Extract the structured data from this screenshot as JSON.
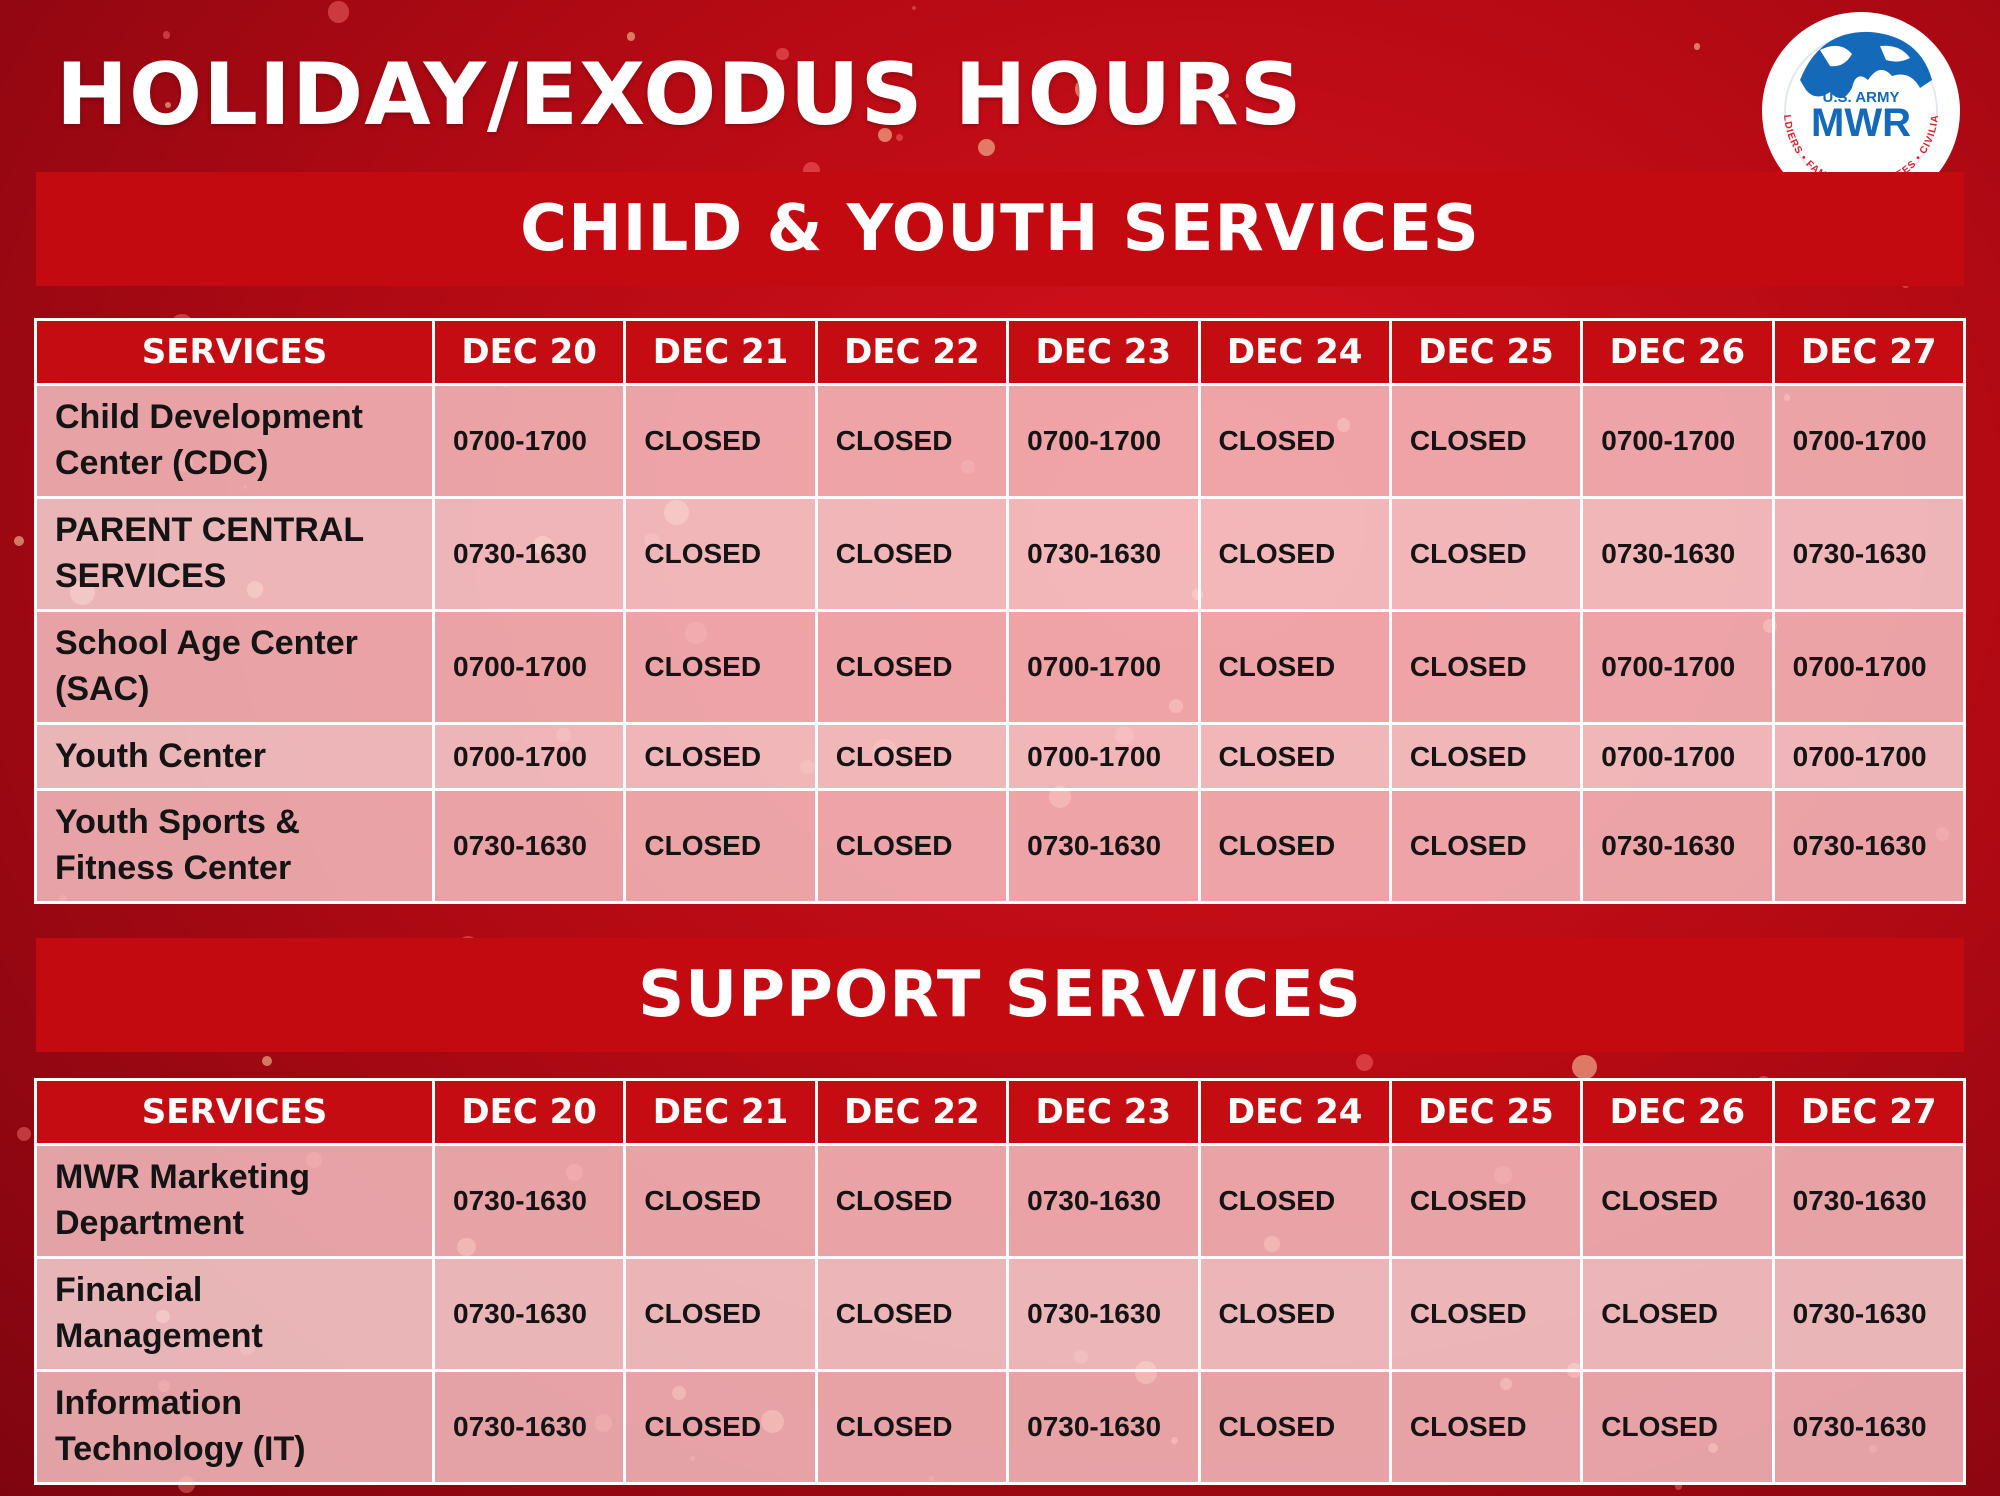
{
  "title": "HOLIDAY/EXODUS HOURS",
  "logo": {
    "top_text": "U.S. ARMY",
    "name": "MWR",
    "ring_text": "SOLDIERS • FAMILIES • RETIREES • CIVILIANS",
    "icon": "globe-icon"
  },
  "colors": {
    "background": "#b50a14",
    "banner": "#c30a10",
    "header_cell": "#c40c12",
    "row_light": "#f9d6d8",
    "row": "#f6c4c7"
  },
  "sections": [
    {
      "banner": "CHILD & YOUTH SERVICES",
      "columns": [
        "SERVICES",
        "DEC 20",
        "DEC 21",
        "DEC 22",
        "DEC 23",
        "DEC 24",
        "DEC 25",
        "DEC 26",
        "DEC 27"
      ],
      "rows": [
        {
          "service": "Child Development Center (CDC)",
          "hours": [
            "0700-1700",
            "CLOSED",
            "CLOSED",
            "0700-1700",
            "CLOSED",
            "CLOSED",
            "0700-1700",
            "0700-1700"
          ]
        },
        {
          "service": "PARENT CENTRAL SERVICES",
          "hours": [
            "0730-1630",
            "CLOSED",
            "CLOSED",
            "0730-1630",
            "CLOSED",
            "CLOSED",
            "0730-1630",
            "0730-1630"
          ]
        },
        {
          "service": "School Age Center (SAC)",
          "hours": [
            "0700-1700",
            "CLOSED",
            "CLOSED",
            "0700-1700",
            "CLOSED",
            "CLOSED",
            "0700-1700",
            "0700-1700"
          ]
        },
        {
          "service": "Youth Center",
          "hours": [
            "0700-1700",
            "CLOSED",
            "CLOSED",
            "0700-1700",
            "CLOSED",
            "CLOSED",
            "0700-1700",
            "0700-1700"
          ]
        },
        {
          "service": "Youth Sports & Fitness Center",
          "hours": [
            "0730-1630",
            "CLOSED",
            "CLOSED",
            "0730-1630",
            "CLOSED",
            "CLOSED",
            "0730-1630",
            "0730-1630"
          ]
        }
      ]
    },
    {
      "banner": "SUPPORT SERVICES",
      "columns": [
        "SERVICES",
        "DEC 20",
        "DEC 21",
        "DEC 22",
        "DEC 23",
        "DEC 24",
        "DEC 25",
        "DEC 26",
        "DEC 27"
      ],
      "rows": [
        {
          "service": "MWR Marketing Department",
          "hours": [
            "0730-1630",
            "CLOSED",
            "CLOSED",
            "0730-1630",
            "CLOSED",
            "CLOSED",
            "CLOSED",
            "0730-1630"
          ]
        },
        {
          "service": "Financial Management",
          "hours": [
            "0730-1630",
            "CLOSED",
            "CLOSED",
            "0730-1630",
            "CLOSED",
            "CLOSED",
            "CLOSED",
            "0730-1630"
          ]
        },
        {
          "service": "Information Technology (IT)",
          "hours": [
            "0730-1630",
            "CLOSED",
            "CLOSED",
            "0730-1630",
            "CLOSED",
            "CLOSED",
            "CLOSED",
            "0730-1630"
          ]
        }
      ]
    }
  ]
}
